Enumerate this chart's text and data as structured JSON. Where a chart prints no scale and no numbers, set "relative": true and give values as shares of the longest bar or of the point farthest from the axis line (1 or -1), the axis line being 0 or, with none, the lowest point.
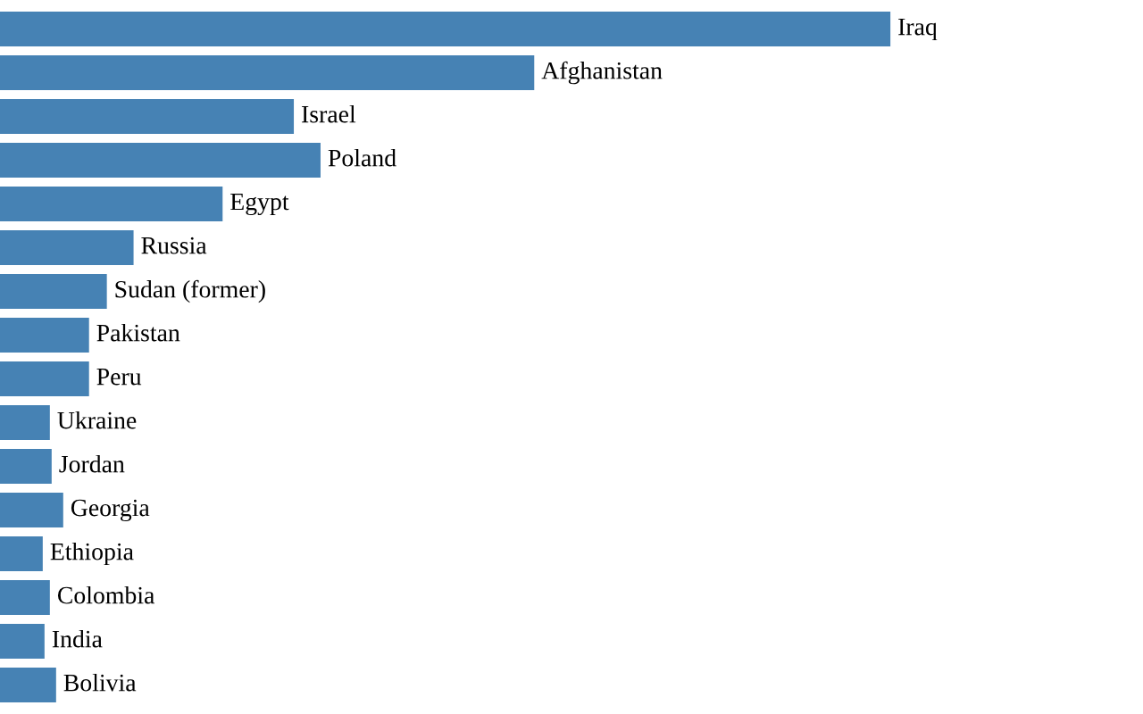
{
  "chart_data": {
    "type": "bar",
    "orientation": "horizontal",
    "relative": true,
    "categories": [
      "Iraq",
      "Afghanistan",
      "Israel",
      "Poland",
      "Egypt",
      "Russia",
      "Sudan (former)",
      "Pakistan",
      "Peru",
      "Ukraine",
      "Jordan",
      "Georgia",
      "Ethiopia",
      "Colombia",
      "India",
      "Bolivia"
    ],
    "values": [
      1,
      0.6,
      0.33,
      0.36,
      0.25,
      0.15,
      0.12,
      0.1,
      0.1,
      0.056,
      0.058,
      0.071,
      0.048,
      0.056,
      0.05,
      0.063
    ],
    "color": "#4682b4"
  }
}
